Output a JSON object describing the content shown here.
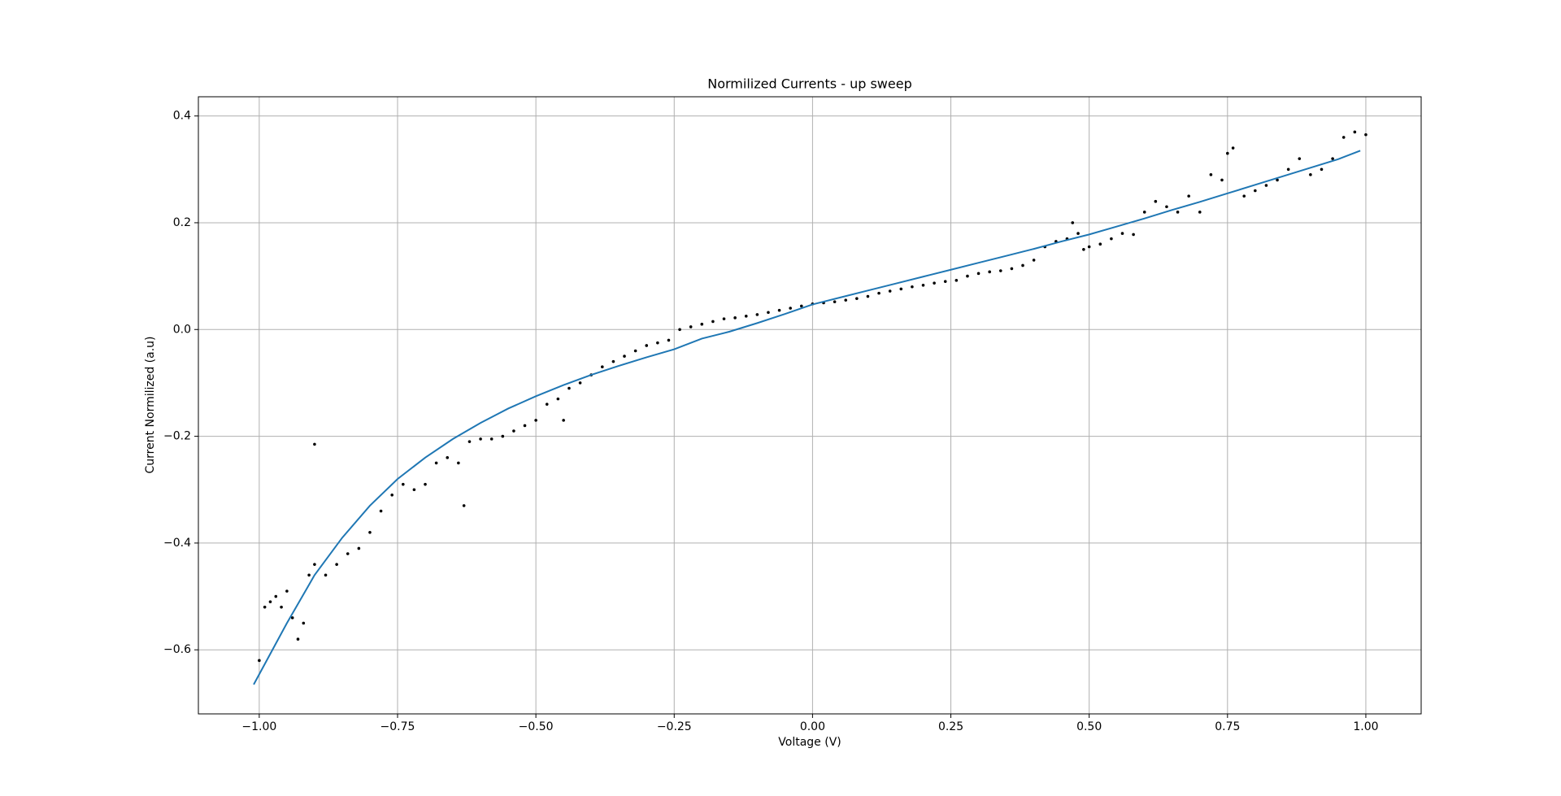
{
  "chart_data": {
    "type": "scatter",
    "title": "Normilized Currents - up sweep",
    "x_label": "Voltage (V)",
    "y_label": "Current Normilized (a.u)",
    "xlim": [
      -1.11,
      1.1
    ],
    "ylim": [
      -0.72,
      0.436
    ],
    "xticks": [
      {
        "value": -1,
        "label": "−1.00"
      },
      {
        "value": -0.75,
        "label": "−0.75"
      },
      {
        "value": -0.5,
        "label": "−0.50"
      },
      {
        "value": -0.25,
        "label": "−0.25"
      },
      {
        "value": 0,
        "label": "0.00"
      },
      0.25,
      {
        "value": 0.5,
        "label": "0.50"
      },
      0.75,
      {
        "value": 1,
        "label": "1.00"
      }
    ],
    "yticks": [
      {
        "value": -0.6,
        "label": "−0.6"
      },
      {
        "value": -0.4,
        "label": "−0.4"
      },
      {
        "value": -0.2,
        "label": "−0.2"
      },
      {
        "value": 0,
        "label": "0.0"
      },
      0.2,
      0.4
    ],
    "grid": true,
    "series": [
      {
        "type": "scatter",
        "color": "#000000",
        "x": [
          -1.0,
          -0.99,
          -0.98,
          -0.97,
          -0.96,
          -0.95,
          -0.94,
          -0.93,
          -0.92,
          -0.91,
          -0.9,
          -0.9,
          -0.88,
          -0.86,
          -0.84,
          -0.82,
          -0.8,
          -0.78,
          -0.76,
          -0.74,
          -0.72,
          -0.7,
          -0.68,
          -0.66,
          -0.64,
          -0.63,
          -0.62,
          -0.6,
          -0.58,
          -0.56,
          -0.54,
          -0.52,
          -0.5,
          -0.48,
          -0.46,
          -0.45,
          -0.44,
          -0.42,
          -0.4,
          -0.38,
          -0.36,
          -0.34,
          -0.32,
          -0.3,
          -0.28,
          -0.26,
          -0.24,
          -0.22,
          -0.2,
          -0.18,
          -0.16,
          -0.14,
          -0.12,
          -0.1,
          -0.08,
          -0.06,
          -0.04,
          -0.02,
          0,
          0.02,
          0.04,
          0.06,
          0.08,
          0.1,
          0.12,
          0.14,
          0.16,
          0.18,
          0.2,
          0.22,
          0.24,
          0.26,
          0.28,
          0.3,
          0.32,
          0.34,
          0.36,
          0.38,
          0.4,
          0.42,
          0.44,
          0.46,
          0.47,
          0.48,
          0.49,
          0.5,
          0.52,
          0.54,
          0.56,
          0.58,
          0.6,
          0.62,
          0.64,
          0.66,
          0.68,
          0.7,
          0.72,
          0.74,
          0.75,
          0.76,
          0.78,
          0.8,
          0.82,
          0.84,
          0.86,
          0.88,
          0.9,
          0.92,
          0.94,
          0.96,
          0.98,
          1.0
        ],
        "values": [
          -0.62,
          -0.52,
          -0.51,
          -0.5,
          -0.52,
          -0.49,
          -0.54,
          -0.58,
          -0.55,
          -0.46,
          -0.44,
          -0.215,
          -0.46,
          -0.44,
          -0.42,
          -0.41,
          -0.38,
          -0.34,
          -0.31,
          -0.29,
          -0.3,
          -0.29,
          -0.25,
          -0.24,
          -0.25,
          -0.33,
          -0.21,
          -0.205,
          -0.205,
          -0.2,
          -0.19,
          -0.18,
          -0.17,
          -0.14,
          -0.13,
          -0.17,
          -0.11,
          -0.1,
          -0.085,
          -0.07,
          -0.06,
          -0.05,
          -0.04,
          -0.03,
          -0.025,
          -0.02,
          0.0,
          0.005,
          0.01,
          0.015,
          0.02,
          0.022,
          0.025,
          0.028,
          0.032,
          0.036,
          0.04,
          0.044,
          0.048,
          0.05,
          0.052,
          0.055,
          0.058,
          0.062,
          0.068,
          0.072,
          0.076,
          0.08,
          0.083,
          0.087,
          0.09,
          0.092,
          0.1,
          0.105,
          0.108,
          0.11,
          0.114,
          0.12,
          0.13,
          0.155,
          0.165,
          0.17,
          0.2,
          0.18,
          0.15,
          0.155,
          0.16,
          0.17,
          0.18,
          0.178,
          0.22,
          0.24,
          0.23,
          0.22,
          0.25,
          0.22,
          0.29,
          0.28,
          0.33,
          0.34,
          0.25,
          0.26,
          0.27,
          0.28,
          0.3,
          0.32,
          0.29,
          0.3,
          0.32,
          0.36,
          0.37,
          0.365
        ]
      },
      {
        "type": "line",
        "color": "#1f77b4",
        "x": [
          -1.01,
          -0.95,
          -0.9,
          -0.85,
          -0.8,
          -0.75,
          -0.7,
          -0.65,
          -0.6,
          -0.55,
          -0.5,
          -0.45,
          -0.4,
          -0.35,
          -0.3,
          -0.25,
          -0.2,
          -0.15,
          -0.1,
          -0.05,
          0,
          0.05,
          0.1,
          0.15,
          0.2,
          0.25,
          0.3,
          0.35,
          0.4,
          0.45,
          0.5,
          0.55,
          0.6,
          0.65,
          0.7,
          0.75,
          0.8,
          0.85,
          0.9,
          0.95,
          0.99
        ],
        "values": [
          -0.665,
          -0.55,
          -0.46,
          -0.39,
          -0.33,
          -0.28,
          -0.24,
          -0.205,
          -0.175,
          -0.148,
          -0.125,
          -0.104,
          -0.085,
          -0.068,
          -0.052,
          -0.037,
          -0.017,
          -0.004,
          0.012,
          0.029,
          0.047,
          0.06,
          0.073,
          0.086,
          0.099,
          0.112,
          0.125,
          0.138,
          0.151,
          0.165,
          0.178,
          0.193,
          0.208,
          0.224,
          0.239,
          0.255,
          0.271,
          0.287,
          0.303,
          0.319,
          0.335
        ]
      }
    ]
  }
}
